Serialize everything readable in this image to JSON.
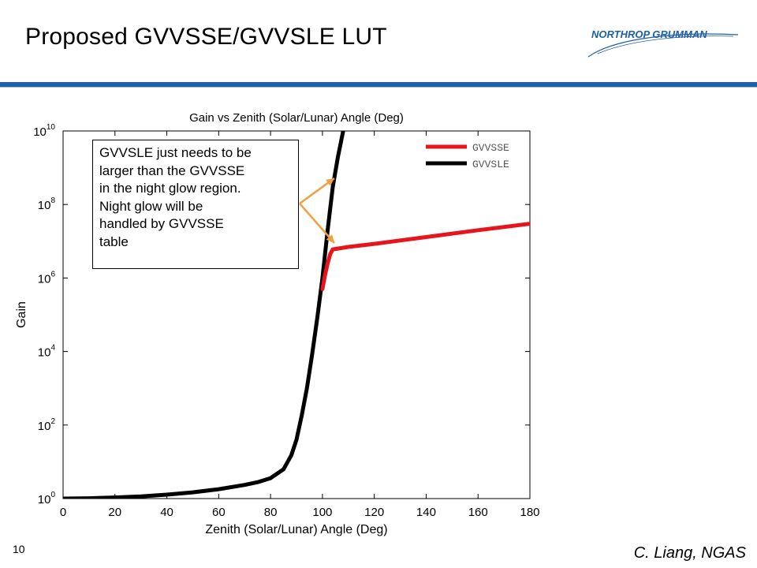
{
  "slide": {
    "title": "Proposed  GVVSSE/GVVSLE LUT",
    "logo_text": "NORTHROP GRUMMAN",
    "page_number": "10",
    "author": "C. Liang, NGAS",
    "colors": {
      "rule": "#1f5fa6",
      "logo": "#1f5fa6",
      "arrow": "#f0a040"
    }
  },
  "annotation": {
    "lines": [
      "GVVSLE just needs to be",
      "larger than the GVVSSE",
      "in the night glow region.",
      "Night glow will be",
      "handled by GVVSSE",
      "table"
    ]
  },
  "chart_data": {
    "type": "line",
    "title": "Gain vs Zenith (Solar/Lunar) Angle (Deg)",
    "xlabel": "Zenith (Solar/Lunar) Angle (Deg)",
    "ylabel": "Gain",
    "xlim": [
      0,
      180
    ],
    "ylim": [
      1,
      10000000000
    ],
    "yscale": "log",
    "xticks": [
      0,
      20,
      40,
      60,
      80,
      100,
      120,
      140,
      160,
      180
    ],
    "yticks": [
      {
        "base": "10",
        "exp": "0",
        "value": 1
      },
      {
        "base": "10",
        "exp": "2",
        "value": 100
      },
      {
        "base": "10",
        "exp": "4",
        "value": 10000
      },
      {
        "base": "10",
        "exp": "6",
        "value": 1000000
      },
      {
        "base": "10",
        "exp": "8",
        "value": 100000000
      },
      {
        "base": "10",
        "exp": "10",
        "value": 10000000000
      }
    ],
    "grid": false,
    "legend_position": "top-right",
    "series": [
      {
        "name": "GVVSSE",
        "color": "#e8141c",
        "x": [
          100,
          101,
          102,
          103,
          104,
          110,
          120,
          140,
          160,
          180
        ],
        "y": [
          500000,
          1200000,
          2500000,
          4500000,
          6000000,
          7000000,
          8500000,
          13000000,
          20000000,
          30000000
        ]
      },
      {
        "name": "GVVSLE",
        "color": "#000000",
        "x": [
          0,
          10,
          20,
          30,
          40,
          50,
          60,
          70,
          75,
          80,
          85,
          88,
          90,
          92,
          94,
          96,
          98,
          100,
          102,
          104,
          106,
          108
        ],
        "y": [
          1,
          1.02,
          1.07,
          1.15,
          1.28,
          1.48,
          1.8,
          2.35,
          2.8,
          3.6,
          6.3,
          15,
          40,
          180,
          1000,
          8000,
          80000,
          1000000,
          20000000,
          300000000,
          2000000000,
          10000000000
        ]
      }
    ]
  }
}
